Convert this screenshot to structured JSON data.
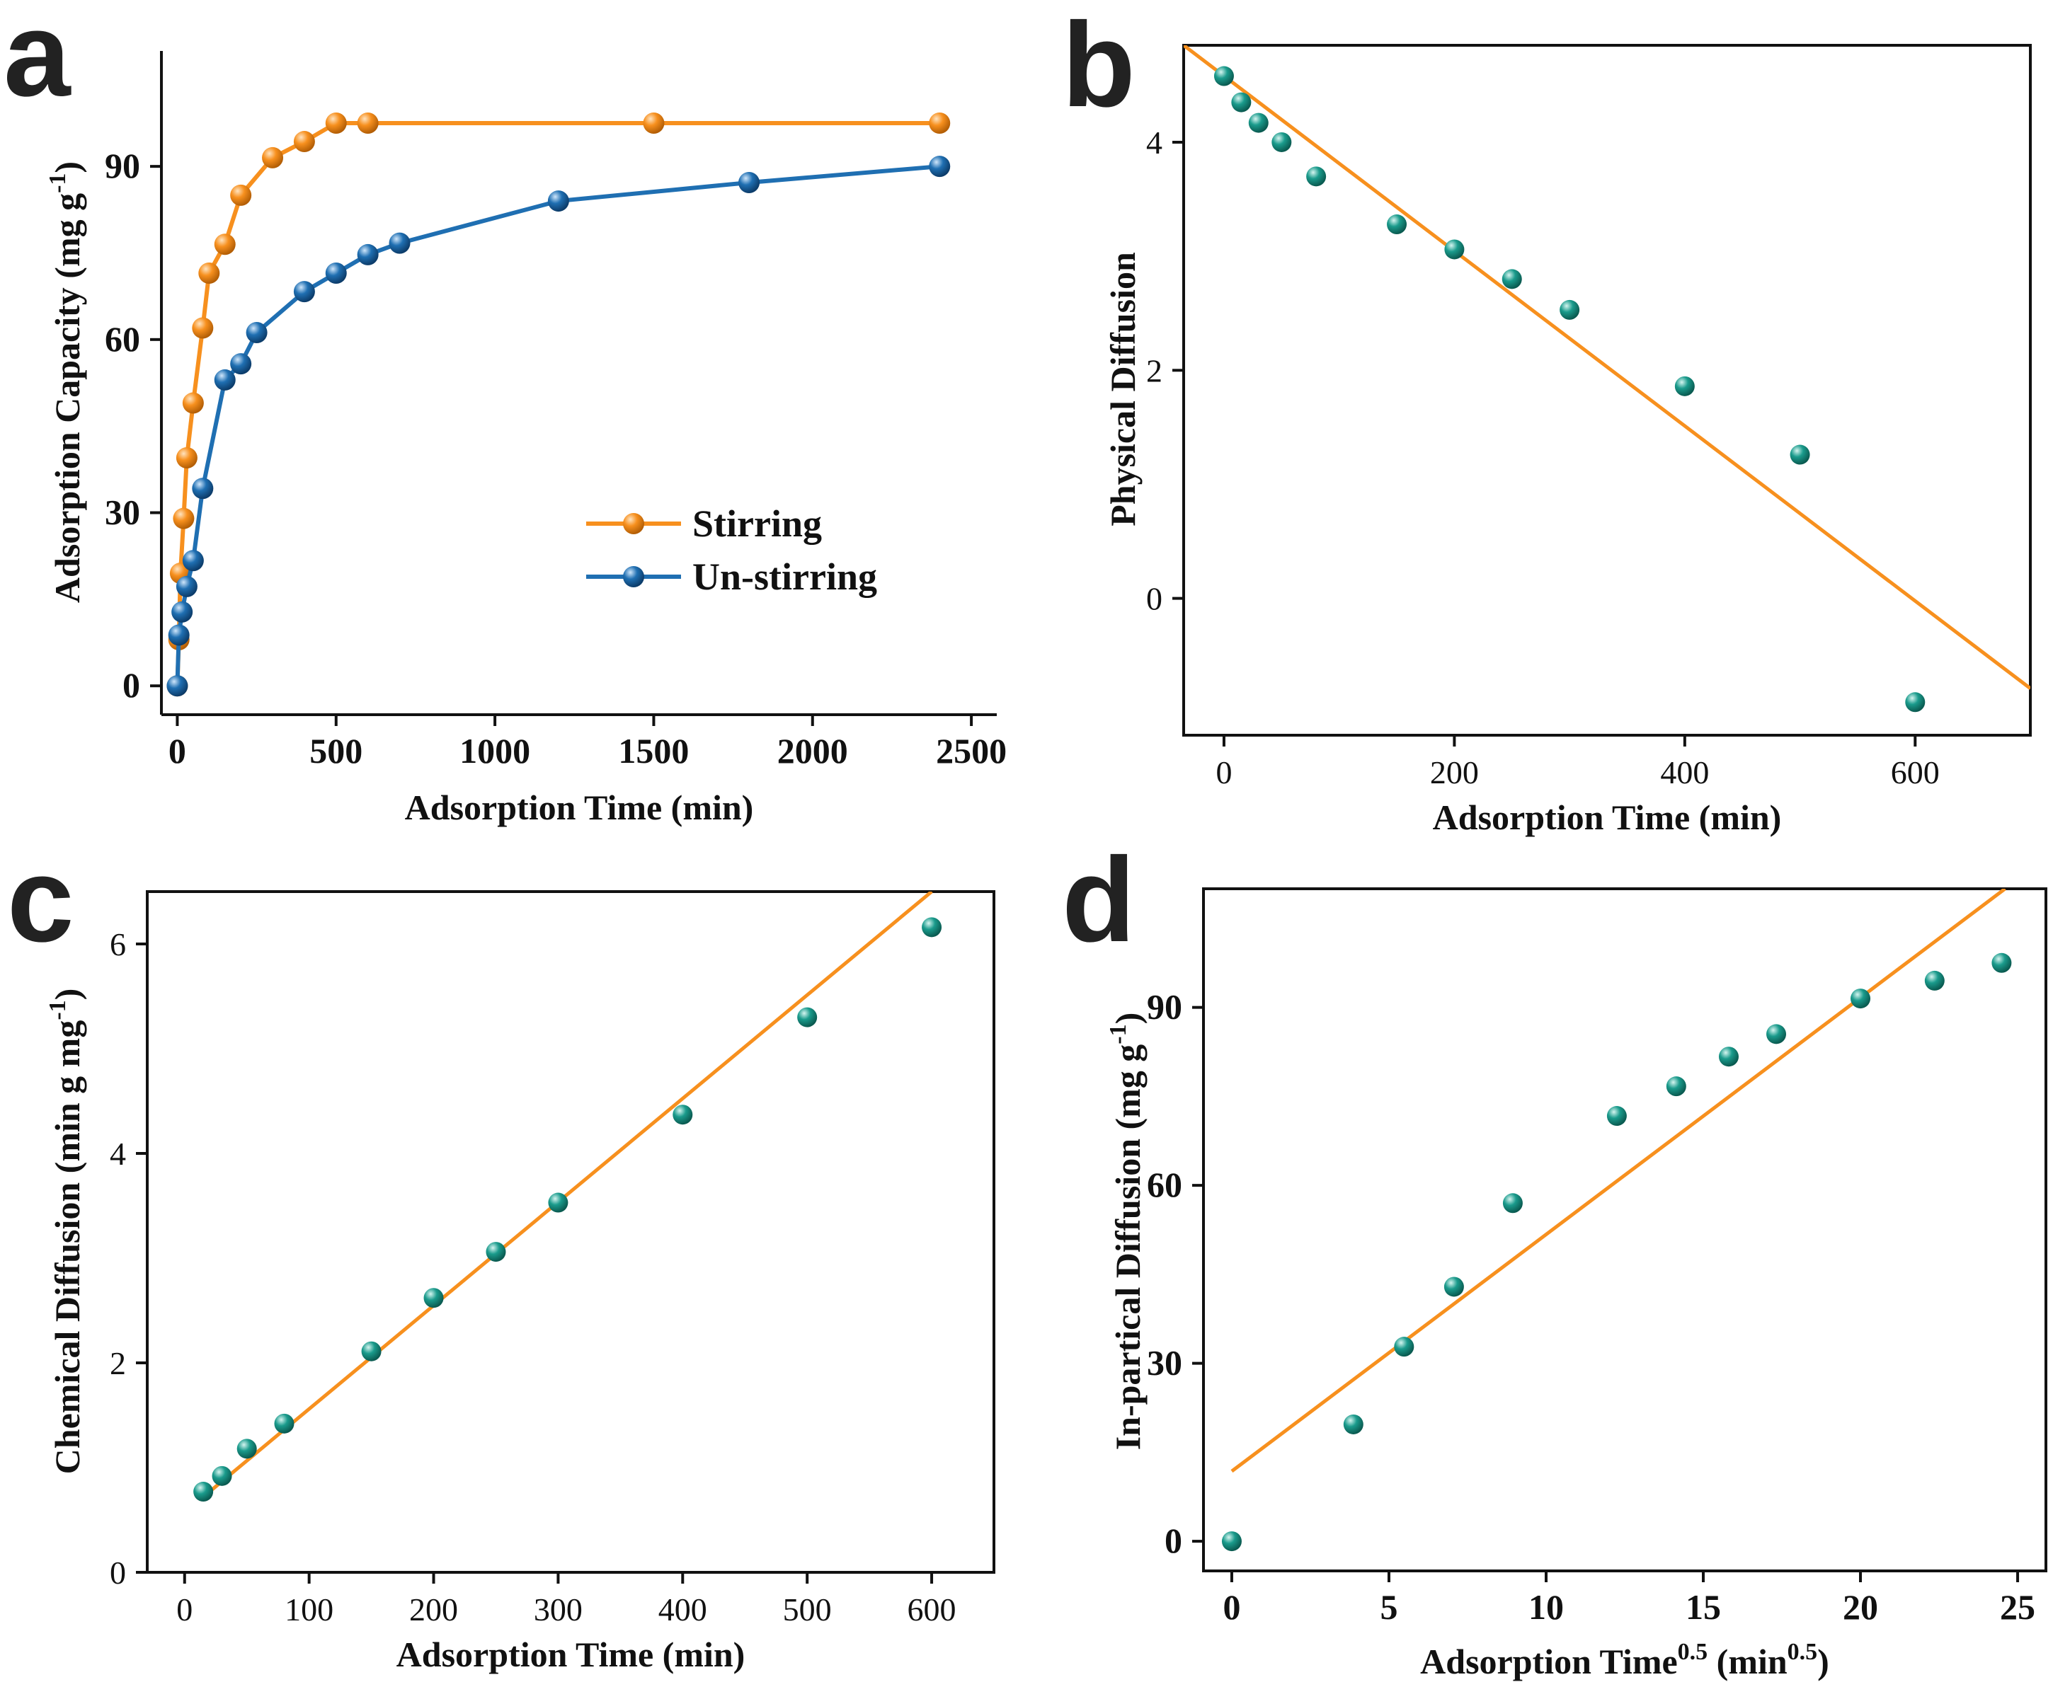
{
  "colors": {
    "stirring": "#F7901E",
    "unstirring": "#1F6FB2",
    "scatter": "#1A9B8C",
    "fit": "#F7901E",
    "axis": "#111111"
  },
  "chart_data": [
    {
      "panel": "a",
      "type": "line",
      "xlabel": "Adsorption Time (min)",
      "ylabel_main": "Adsorption Capacity (mg g",
      "ylabel_sup": "-1",
      "ylabel_end": ")",
      "xlim": [
        -50,
        2580
      ],
      "ylim": [
        -5,
        110
      ],
      "xticks": [
        0,
        500,
        1000,
        1500,
        2000,
        2500
      ],
      "xtick_labels": [
        "0",
        "500",
        "1000",
        "1500",
        "2000",
        "2500"
      ],
      "yticks": [
        0,
        30,
        60,
        90
      ],
      "ytick_labels": [
        "0",
        "30",
        "60",
        "90"
      ],
      "series": [
        {
          "name": "Stirring",
          "color_key": "stirring",
          "x": [
            0,
            5,
            10,
            20,
            30,
            50,
            80,
            100,
            150,
            200,
            300,
            400,
            500,
            600,
            1500,
            2400
          ],
          "y": [
            0,
            8,
            19.5,
            29,
            39.5,
            49,
            62,
            71.5,
            76.5,
            85,
            91.5,
            94.3,
            97.5,
            97.5,
            97.5,
            97.5
          ]
        },
        {
          "name": "Un-stirring",
          "color_key": "unstirring",
          "x": [
            0,
            5,
            15,
            30,
            50,
            80,
            150,
            200,
            250,
            400,
            500,
            600,
            700,
            1200,
            1800,
            2400
          ],
          "y": [
            0,
            8.8,
            12.8,
            17.2,
            21.7,
            34.2,
            53,
            55.8,
            61.2,
            68.3,
            71.5,
            74.7,
            76.7,
            84,
            87.2,
            90
          ]
        }
      ],
      "legend": [
        "Stirring",
        "Un-stirring"
      ]
    },
    {
      "panel": "b",
      "type": "scatter",
      "xlabel": "Adsorption Time (min)",
      "ylabel": "Physical Diffusion",
      "xlim": [
        -35,
        700
      ],
      "ylim": [
        -1.2,
        4.85
      ],
      "xticks": [
        0,
        200,
        400,
        600
      ],
      "xtick_labels": [
        "0",
        "200",
        "400",
        "600"
      ],
      "yticks": [
        0,
        2,
        4
      ],
      "ytick_labels": [
        "0",
        "2",
        "4"
      ],
      "points": {
        "x": [
          0,
          15,
          30,
          50,
          80,
          150,
          200,
          250,
          300,
          400,
          500,
          600
        ],
        "y": [
          4.58,
          4.35,
          4.17,
          4.0,
          3.7,
          3.28,
          3.06,
          2.8,
          2.53,
          1.86,
          1.26,
          -0.91
        ]
      },
      "fit": {
        "x": [
          -35,
          700
        ],
        "y": [
          4.85,
          -0.79
        ]
      }
    },
    {
      "panel": "c",
      "type": "scatter",
      "xlabel": "Adsorption Time (min)",
      "ylabel_main": "Chemical Diffusion (min g mg",
      "ylabel_sup": "-1",
      "ylabel_end": ")",
      "xlim": [
        -30,
        650
      ],
      "ylim": [
        0,
        6.5
      ],
      "xticks": [
        0,
        100,
        200,
        300,
        400,
        500,
        600
      ],
      "xtick_labels": [
        "0",
        "100",
        "200",
        "300",
        "400",
        "500",
        "600"
      ],
      "yticks": [
        0,
        2,
        4,
        6
      ],
      "ytick_labels": [
        "0",
        "2",
        "4",
        "6"
      ],
      "points": {
        "x": [
          15,
          30,
          50,
          80,
          150,
          200,
          250,
          300,
          400,
          500,
          600
        ],
        "y": [
          0.77,
          0.92,
          1.18,
          1.42,
          2.11,
          2.62,
          3.06,
          3.53,
          4.37,
          5.3,
          6.16
        ]
      },
      "fit": {
        "x": [
          15,
          600
        ],
        "y": [
          0.72,
          6.5
        ]
      }
    },
    {
      "panel": "d",
      "type": "scatter",
      "xlabel_main": "Adsorption Time",
      "xlabel_sup": "0.5",
      "xlabel_mid": " (min",
      "xlabel_sup2": "0.5",
      "xlabel_end": ")",
      "ylabel_main": "In-partical Diffusion (mg g",
      "ylabel_sup": "-1",
      "ylabel_end": ")",
      "xlim": [
        -0.9,
        25.9
      ],
      "ylim": [
        -5,
        110
      ],
      "xticks": [
        0,
        5,
        10,
        15,
        20,
        25
      ],
      "xtick_labels": [
        "0",
        "5",
        "10",
        "15",
        "20",
        "25"
      ],
      "yticks": [
        0,
        30,
        60,
        90
      ],
      "ytick_labels": [
        "0",
        "30",
        "60",
        "90"
      ],
      "points": {
        "x": [
          0,
          3.87,
          5.48,
          7.07,
          8.94,
          12.25,
          14.14,
          15.81,
          17.32,
          20.0,
          22.36,
          24.49
        ],
        "y": [
          0,
          19.7,
          32.8,
          42.9,
          57,
          71.7,
          76.7,
          81.7,
          85.5,
          91.5,
          94.5,
          97.5
        ]
      },
      "fit": {
        "x": [
          0,
          24.6
        ],
        "y": [
          11.8,
          110
        ]
      }
    }
  ],
  "panel_letters": [
    "a",
    "b",
    "c",
    "d"
  ]
}
